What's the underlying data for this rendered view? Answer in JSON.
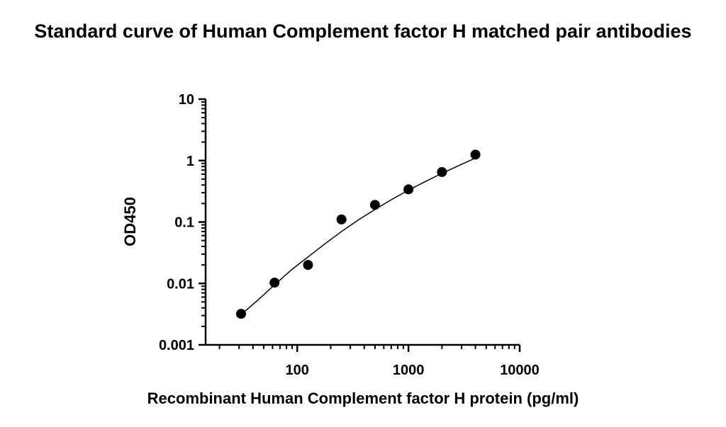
{
  "chart_data": {
    "type": "scatter",
    "title": "Standard curve of Human Complement factor H matched pair antibodies",
    "x_label": "Recombinant Human Complement factor H protein (pg/ml)",
    "y_label": "OD450",
    "x_scale": "log",
    "y_scale": "log",
    "xlim": [
      15,
      10000
    ],
    "ylim": [
      0.001,
      10
    ],
    "xticks": [
      100,
      1000,
      10000
    ],
    "yticks": [
      0.001,
      0.01,
      0.1,
      1,
      10
    ],
    "xminor_ticks": [
      20,
      30,
      40,
      50,
      60,
      70,
      80,
      90,
      200,
      300,
      400,
      500,
      600,
      700,
      800,
      900,
      2000,
      3000,
      4000,
      5000,
      6000,
      7000,
      8000,
      9000
    ],
    "yminor_ticks": [
      0.002,
      0.003,
      0.004,
      0.005,
      0.006,
      0.007,
      0.008,
      0.009,
      0.02,
      0.03,
      0.04,
      0.05,
      0.06,
      0.07,
      0.08,
      0.09,
      0.2,
      0.3,
      0.4,
      0.5,
      0.6,
      0.7,
      0.8,
      0.9,
      2,
      3,
      4,
      5,
      6,
      7,
      8,
      9
    ],
    "series": [
      {
        "type": "scatter",
        "color": "#000000",
        "x": [
          31.25,
          62.5,
          125,
          250,
          500,
          1000,
          2000,
          4000
        ],
        "values": [
          0.0032,
          0.0103,
          0.02,
          0.11,
          0.19,
          0.34,
          0.65,
          1.25
        ]
      },
      {
        "type": "line",
        "color": "#000000",
        "x": [
          31.25,
          45,
          62.5,
          90,
          125,
          180,
          250,
          360,
          500,
          700,
          1000,
          1400,
          2000,
          2800,
          4000
        ],
        "values": [
          0.0031,
          0.0055,
          0.0095,
          0.017,
          0.027,
          0.045,
          0.07,
          0.11,
          0.16,
          0.23,
          0.33,
          0.45,
          0.62,
          0.82,
          1.1
        ]
      }
    ]
  }
}
